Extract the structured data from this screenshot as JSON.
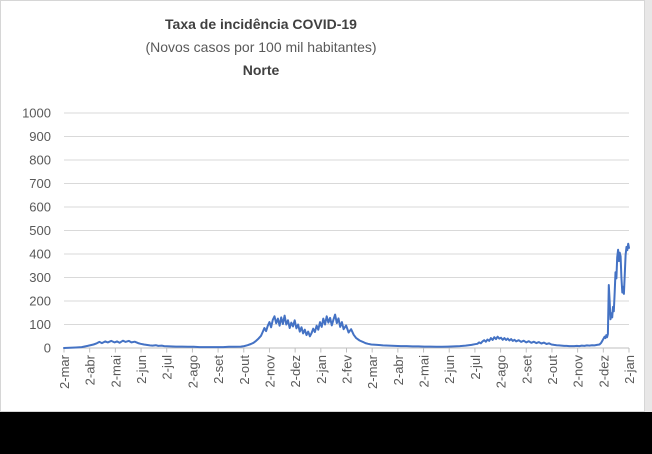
{
  "window": {
    "bottom_band_color": "#000000",
    "card_border_color": "#d6d6d6",
    "right_strip_color": "#e8e7e7",
    "background_color": "#ffffff"
  },
  "chart_data": {
    "type": "line",
    "title": "Taxa de incidência COVID-19",
    "subtitle": "(Novos casos por 100 mil habitantes)",
    "region_title": "Norte",
    "legend": "none",
    "grid": "horizontal",
    "ylim": [
      0,
      1000
    ],
    "y_ticks": [
      0,
      100,
      200,
      300,
      400,
      500,
      600,
      700,
      800,
      900,
      1000
    ],
    "x_tick_labels": [
      "2-mar",
      "2-abr",
      "2-mai",
      "2-jun",
      "2-jul",
      "2-ago",
      "2-set",
      "2-out",
      "2-nov",
      "2-dez",
      "2-jan",
      "2-fev",
      "2-mar",
      "2-abr",
      "2-mai",
      "2-jun",
      "2-jul",
      "2-ago",
      "2-set",
      "2-out",
      "2-nov",
      "2-dez",
      "2-jan"
    ],
    "x_domain_days": [
      0,
      671
    ],
    "colors": {
      "line": "#4472C4",
      "gridline": "#D9D9D9",
      "axis": "#BFBFBF",
      "tick_label": "#595959"
    },
    "series": [
      {
        "name": "Norte",
        "points_format": "[day_offset_from_2-mar, incidence_per_100k]",
        "points": [
          [
            0,
            0
          ],
          [
            7,
            1
          ],
          [
            14,
            2
          ],
          [
            21,
            4
          ],
          [
            28,
            9
          ],
          [
            35,
            15
          ],
          [
            39,
            20
          ],
          [
            42,
            26
          ],
          [
            45,
            21
          ],
          [
            49,
            28
          ],
          [
            52,
            24
          ],
          [
            56,
            30
          ],
          [
            60,
            24
          ],
          [
            63,
            28
          ],
          [
            66,
            22
          ],
          [
            70,
            31
          ],
          [
            73,
            26
          ],
          [
            77,
            30
          ],
          [
            80,
            24
          ],
          [
            84,
            27
          ],
          [
            88,
            21
          ],
          [
            91,
            18
          ],
          [
            95,
            15
          ],
          [
            98,
            13
          ],
          [
            102,
            11
          ],
          [
            105,
            10
          ],
          [
            109,
            12
          ],
          [
            112,
            9
          ],
          [
            116,
            10
          ],
          [
            119,
            8
          ],
          [
            126,
            7
          ],
          [
            133,
            6
          ],
          [
            140,
            6
          ],
          [
            147,
            5
          ],
          [
            154,
            5
          ],
          [
            161,
            4
          ],
          [
            168,
            4
          ],
          [
            175,
            4
          ],
          [
            182,
            4
          ],
          [
            189,
            4
          ],
          [
            196,
            5
          ],
          [
            203,
            5
          ],
          [
            210,
            6
          ],
          [
            214,
            8
          ],
          [
            218,
            12
          ],
          [
            222,
            17
          ],
          [
            225,
            22
          ],
          [
            228,
            30
          ],
          [
            231,
            40
          ],
          [
            234,
            52
          ],
          [
            236,
            68
          ],
          [
            238,
            85
          ],
          [
            240,
            72
          ],
          [
            242,
            95
          ],
          [
            244,
            110
          ],
          [
            246,
            88
          ],
          [
            248,
            120
          ],
          [
            250,
            135
          ],
          [
            252,
            105
          ],
          [
            254,
            125
          ],
          [
            256,
            95
          ],
          [
            258,
            130
          ],
          [
            260,
            102
          ],
          [
            262,
            138
          ],
          [
            264,
            100
          ],
          [
            266,
            118
          ],
          [
            268,
            85
          ],
          [
            270,
            108
          ],
          [
            272,
            92
          ],
          [
            274,
            118
          ],
          [
            276,
            84
          ],
          [
            278,
            100
          ],
          [
            280,
            70
          ],
          [
            282,
            88
          ],
          [
            284,
            62
          ],
          [
            286,
            78
          ],
          [
            288,
            55
          ],
          [
            290,
            70
          ],
          [
            292,
            50
          ],
          [
            294,
            64
          ],
          [
            296,
            82
          ],
          [
            298,
            68
          ],
          [
            300,
            95
          ],
          [
            302,
            78
          ],
          [
            304,
            110
          ],
          [
            306,
            90
          ],
          [
            308,
            125
          ],
          [
            310,
            100
          ],
          [
            312,
            135
          ],
          [
            314,
            108
          ],
          [
            316,
            128
          ],
          [
            318,
            96
          ],
          [
            320,
            120
          ],
          [
            322,
            142
          ],
          [
            324,
            106
          ],
          [
            326,
            126
          ],
          [
            328,
            90
          ],
          [
            330,
            110
          ],
          [
            332,
            80
          ],
          [
            335,
            96
          ],
          [
            338,
            66
          ],
          [
            341,
            80
          ],
          [
            344,
            56
          ],
          [
            347,
            42
          ],
          [
            351,
            32
          ],
          [
            355,
            26
          ],
          [
            358,
            21
          ],
          [
            361,
            18
          ],
          [
            365,
            15
          ],
          [
            372,
            13
          ],
          [
            379,
            11
          ],
          [
            386,
            10
          ],
          [
            393,
            9
          ],
          [
            400,
            8
          ],
          [
            407,
            8
          ],
          [
            414,
            7
          ],
          [
            421,
            7
          ],
          [
            428,
            6
          ],
          [
            435,
            6
          ],
          [
            442,
            5
          ],
          [
            449,
            5
          ],
          [
            456,
            6
          ],
          [
            463,
            7
          ],
          [
            470,
            8
          ],
          [
            477,
            10
          ],
          [
            484,
            13
          ],
          [
            488,
            16
          ],
          [
            491,
            18
          ],
          [
            493,
            24
          ],
          [
            495,
            20
          ],
          [
            497,
            28
          ],
          [
            499,
            33
          ],
          [
            501,
            27
          ],
          [
            503,
            36
          ],
          [
            505,
            30
          ],
          [
            507,
            42
          ],
          [
            509,
            34
          ],
          [
            511,
            46
          ],
          [
            513,
            38
          ],
          [
            515,
            48
          ],
          [
            517,
            40
          ],
          [
            519,
            44
          ],
          [
            521,
            35
          ],
          [
            523,
            42
          ],
          [
            525,
            34
          ],
          [
            527,
            40
          ],
          [
            529,
            32
          ],
          [
            531,
            38
          ],
          [
            533,
            30
          ],
          [
            535,
            35
          ],
          [
            537,
            28
          ],
          [
            540,
            33
          ],
          [
            543,
            26
          ],
          [
            546,
            31
          ],
          [
            549,
            24
          ],
          [
            552,
            29
          ],
          [
            555,
            22
          ],
          [
            558,
            27
          ],
          [
            561,
            21
          ],
          [
            564,
            25
          ],
          [
            567,
            19
          ],
          [
            570,
            23
          ],
          [
            573,
            17
          ],
          [
            576,
            20
          ],
          [
            579,
            15
          ],
          [
            582,
            13
          ],
          [
            585,
            12
          ],
          [
            588,
            11
          ],
          [
            591,
            10
          ],
          [
            594,
            9
          ],
          [
            597,
            9
          ],
          [
            600,
            8
          ],
          [
            603,
            8
          ],
          [
            606,
            8
          ],
          [
            609,
            9
          ],
          [
            612,
            8
          ],
          [
            615,
            10
          ],
          [
            618,
            9
          ],
          [
            621,
            11
          ],
          [
            624,
            10
          ],
          [
            627,
            12
          ],
          [
            630,
            11
          ],
          [
            633,
            13
          ],
          [
            636,
            15
          ],
          [
            638,
            22
          ],
          [
            640,
            35
          ],
          [
            642,
            48
          ],
          [
            643,
            42
          ],
          [
            644,
            55
          ],
          [
            645,
            46
          ],
          [
            646,
            60
          ],
          [
            647,
            268
          ],
          [
            648,
            205
          ],
          [
            649,
            122
          ],
          [
            650,
            148
          ],
          [
            651,
            130
          ],
          [
            652,
            175
          ],
          [
            653,
            156
          ],
          [
            654,
            238
          ],
          [
            655,
            322
          ],
          [
            656,
            296
          ],
          [
            657,
            386
          ],
          [
            658,
            418
          ],
          [
            659,
            370
          ],
          [
            660,
            406
          ],
          [
            661,
            390
          ],
          [
            662,
            300
          ],
          [
            663,
            236
          ],
          [
            664,
            260
          ],
          [
            665,
            230
          ],
          [
            666,
            316
          ],
          [
            667,
            396
          ],
          [
            668,
            430
          ],
          [
            669,
            416
          ],
          [
            670,
            444
          ],
          [
            671,
            426
          ]
        ]
      }
    ]
  }
}
